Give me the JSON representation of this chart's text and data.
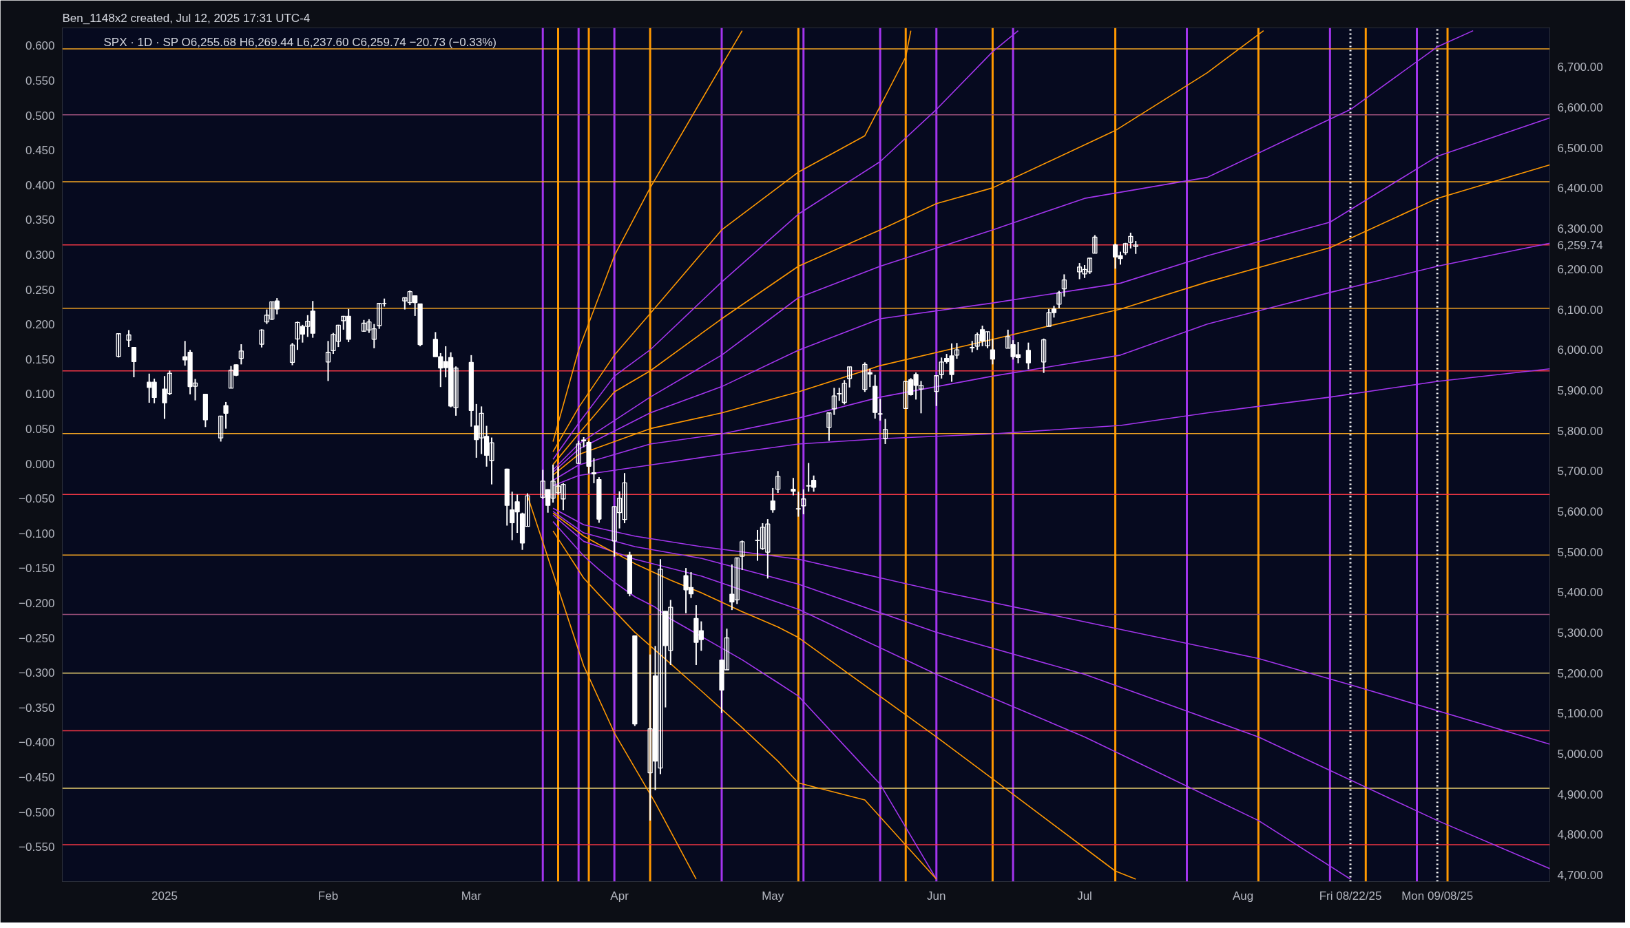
{
  "chart_data": {
    "type": "candlestick",
    "title": "Ben_1148x2 created, Jul 12, 2025 17:31 UTC-4",
    "subtitle": "SPX · 1D · SP  O6,255.68  H6,269.44  L6,237.60  C6,259.74  −20.73 (−0.33%)",
    "color": "#ffffff",
    "grid": false,
    "xlim": [
      "2024-12-13",
      "2025-09-30"
    ],
    "xticks": [
      {
        "value": "2025-01-02",
        "label": "2025"
      },
      {
        "value": "2025-02-03",
        "label": "Feb"
      },
      {
        "value": "2025-03-03",
        "label": "Mar"
      },
      {
        "value": "2025-04-01",
        "label": "Apr"
      },
      {
        "value": "2025-05-01",
        "label": "May"
      },
      {
        "value": "2025-06-02",
        "label": "Jun"
      },
      {
        "value": "2025-07-01",
        "label": "Jul"
      },
      {
        "value": "2025-08-01",
        "label": "Aug"
      }
    ],
    "ylim": [
      4684,
      6797
    ],
    "yticks": [
      {
        "value": 4700,
        "label": "4,700.00"
      },
      {
        "value": 4800,
        "label": "4,800.00"
      },
      {
        "value": 4900,
        "label": "4,900.00"
      },
      {
        "value": 5000,
        "label": "5,000.00"
      },
      {
        "value": 5100,
        "label": "5,100.00"
      },
      {
        "value": 5200,
        "label": "5,200.00"
      },
      {
        "value": 5300,
        "label": "5,300.00"
      },
      {
        "value": 5400,
        "label": "5,400.00"
      },
      {
        "value": 5500,
        "label": "5,500.00"
      },
      {
        "value": 5600,
        "label": "5,600.00"
      },
      {
        "value": 5700,
        "label": "5,700.00"
      },
      {
        "value": 5800,
        "label": "5,800.00"
      },
      {
        "value": 5900,
        "label": "5,900.00"
      },
      {
        "value": 6000,
        "label": "6,000.00"
      },
      {
        "value": 6100,
        "label": "6,100.00"
      },
      {
        "value": 6200,
        "label": "6,200.00"
      },
      {
        "value": 6300,
        "label": "6,300.00"
      },
      {
        "value": 6400,
        "label": "6,400.00"
      },
      {
        "value": 6500,
        "label": "6,500.00"
      },
      {
        "value": 6600,
        "label": "6,600.00"
      },
      {
        "value": 6700,
        "label": "6,700.00"
      }
    ],
    "y2lim": [
      -0.5996,
      0.6255
    ],
    "y2ticks": [
      {
        "value": -0.55,
        "label": "−0.550"
      },
      {
        "value": -0.5,
        "label": "−0.500"
      },
      {
        "value": -0.45,
        "label": "−0.450"
      },
      {
        "value": -0.4,
        "label": "−0.400"
      },
      {
        "value": -0.35,
        "label": "−0.350"
      },
      {
        "value": -0.3,
        "label": "−0.300"
      },
      {
        "value": -0.25,
        "label": "−0.250"
      },
      {
        "value": -0.2,
        "label": "−0.200"
      },
      {
        "value": -0.15,
        "label": "−0.150"
      },
      {
        "value": -0.1,
        "label": "−0.100"
      },
      {
        "value": -0.05,
        "label": "−0.050"
      },
      {
        "value": 0,
        "label": "0.000"
      },
      {
        "value": 0.05,
        "label": "0.050"
      },
      {
        "value": 0.1,
        "label": "0.100"
      },
      {
        "value": 0.15,
        "label": "0.150"
      },
      {
        "value": 0.2,
        "label": "0.200"
      },
      {
        "value": 0.25,
        "label": "0.250"
      },
      {
        "value": 0.3,
        "label": "0.300"
      },
      {
        "value": 0.35,
        "label": "0.350"
      },
      {
        "value": 0.4,
        "label": "0.400"
      },
      {
        "value": 0.45,
        "label": "0.450"
      },
      {
        "value": 0.5,
        "label": "0.500"
      },
      {
        "value": 0.55,
        "label": "0.550"
      },
      {
        "value": 0.6,
        "label": "0.600"
      }
    ],
    "x": [
      "2024-12-24",
      "2024-12-26",
      "2024-12-27",
      "2024-12-30",
      "2024-12-31",
      "2025-01-02",
      "2025-01-03",
      "2025-01-06",
      "2025-01-07",
      "2025-01-08",
      "2025-01-10",
      "2025-01-13",
      "2025-01-14",
      "2025-01-15",
      "2025-01-16",
      "2025-01-17",
      "2025-01-21",
      "2025-01-22",
      "2025-01-23",
      "2025-01-24",
      "2025-01-27",
      "2025-01-28",
      "2025-01-29",
      "2025-01-30",
      "2025-01-31",
      "2025-02-03",
      "2025-02-04",
      "2025-02-05",
      "2025-02-06",
      "2025-02-07",
      "2025-02-10",
      "2025-02-11",
      "2025-02-12",
      "2025-02-13",
      "2025-02-14",
      "2025-02-18",
      "2025-02-19",
      "2025-02-20",
      "2025-02-21",
      "2025-02-24",
      "2025-02-25",
      "2025-02-26",
      "2025-02-27",
      "2025-02-28",
      "2025-03-03",
      "2025-03-04",
      "2025-03-05",
      "2025-03-06",
      "2025-03-07",
      "2025-03-10",
      "2025-03-11",
      "2025-03-12",
      "2025-03-13",
      "2025-03-14",
      "2025-03-17",
      "2025-03-18",
      "2025-03-19",
      "2025-03-20",
      "2025-03-21",
      "2025-03-24",
      "2025-03-25",
      "2025-03-26",
      "2025-03-27",
      "2025-03-28",
      "2025-03-31",
      "2025-04-01",
      "2025-04-02",
      "2025-04-03",
      "2025-04-04",
      "2025-04-07",
      "2025-04-08",
      "2025-04-09",
      "2025-04-10",
      "2025-04-11",
      "2025-04-14",
      "2025-04-15",
      "2025-04-16",
      "2025-04-17",
      "2025-04-21",
      "2025-04-22",
      "2025-04-23",
      "2025-04-24",
      "2025-04-25",
      "2025-04-28",
      "2025-04-29",
      "2025-04-30",
      "2025-05-01",
      "2025-05-02",
      "2025-05-05",
      "2025-05-06",
      "2025-05-07",
      "2025-05-08",
      "2025-05-09",
      "2025-05-12",
      "2025-05-13",
      "2025-05-14",
      "2025-05-15",
      "2025-05-16",
      "2025-05-19",
      "2025-05-20",
      "2025-05-21",
      "2025-05-22",
      "2025-05-23",
      "2025-05-27",
      "2025-05-28",
      "2025-05-29",
      "2025-05-30",
      "2025-06-02",
      "2025-06-03",
      "2025-06-04",
      "2025-06-05",
      "2025-06-06",
      "2025-06-09",
      "2025-06-10",
      "2025-06-11",
      "2025-06-12",
      "2025-06-13",
      "2025-06-16",
      "2025-06-17",
      "2025-06-18",
      "2025-06-20",
      "2025-06-23",
      "2025-06-24",
      "2025-06-25",
      "2025-06-26",
      "2025-06-27",
      "2025-06-30",
      "2025-07-01",
      "2025-07-02",
      "2025-07-03",
      "2025-07-07",
      "2025-07-08",
      "2025-07-09",
      "2025-07-10",
      "2025-07-11"
    ],
    "ohlc": [
      [
        5984,
        6040,
        5981,
        6040
      ],
      [
        6024,
        6049,
        6007,
        6037
      ],
      [
        6006,
        6006,
        5932,
        5971
      ],
      [
        5920,
        5941,
        5869,
        5907
      ],
      [
        5920,
        5929,
        5868,
        5882
      ],
      [
        5903,
        5935,
        5829,
        5869
      ],
      [
        5892,
        5949,
        5888,
        5942
      ],
      [
        5983,
        6022,
        5961,
        5975
      ],
      [
        5994,
        6000,
        5890,
        5909
      ],
      [
        5910,
        5928,
        5875,
        5918
      ],
      [
        5890,
        5890,
        5809,
        5827
      ],
      [
        5782,
        5837,
        5773,
        5836
      ],
      [
        5862,
        5871,
        5805,
        5843
      ],
      [
        5905,
        5960,
        5905,
        5950
      ],
      [
        5963,
        5964,
        5935,
        5937
      ],
      [
        5979,
        6014,
        5964,
        5997
      ],
      [
        6014,
        6051,
        6006,
        6049
      ],
      [
        6069,
        6100,
        6064,
        6086
      ],
      [
        6076,
        6119,
        6074,
        6119
      ],
      [
        6121,
        6128,
        6088,
        6101
      ],
      [
        5969,
        6017,
        5962,
        6012
      ],
      [
        6027,
        6070,
        6000,
        6068
      ],
      [
        6058,
        6062,
        6018,
        6039
      ],
      [
        6058,
        6086,
        6032,
        6071
      ],
      [
        6096,
        6121,
        6030,
        6041
      ],
      [
        5970,
        6022,
        5923,
        5994
      ],
      [
        5998,
        6042,
        5990,
        6038
      ],
      [
        6021,
        6062,
        6007,
        6061
      ],
      [
        6072,
        6084,
        6050,
        6083
      ],
      [
        6083,
        6101,
        6019,
        6026
      ],
      [
        6046,
        6074,
        6045,
        6066
      ],
      [
        6049,
        6076,
        6042,
        6069
      ],
      [
        6026,
        6064,
        6004,
        6052
      ],
      [
        6060,
        6116,
        6052,
        6115
      ],
      [
        6115,
        6127,
        6107,
        6115
      ],
      [
        6121,
        6129,
        6100,
        6129
      ],
      [
        6117,
        6147,
        6111,
        6144
      ],
      [
        6134,
        6134,
        6084,
        6117
      ],
      [
        6114,
        6114,
        6009,
        6013
      ],
      [
        6026,
        6044,
        5983,
        5983
      ],
      [
        5983,
        5992,
        5908,
        5955
      ],
      [
        5971,
        6009,
        5932,
        5956
      ],
      [
        5981,
        5994,
        5858,
        5861
      ],
      [
        5857,
        5959,
        5837,
        5955
      ],
      [
        5969,
        5987,
        5810,
        5850
      ],
      [
        5812,
        5866,
        5733,
        5778
      ],
      [
        5782,
        5860,
        5742,
        5843
      ],
      [
        5786,
        5812,
        5711,
        5739
      ],
      [
        5726,
        5783,
        5667,
        5770
      ],
      [
        5705,
        5706,
        5565,
        5615
      ],
      [
        5604,
        5649,
        5529,
        5572
      ],
      [
        5624,
        5642,
        5547,
        5599
      ],
      [
        5594,
        5597,
        5505,
        5522
      ],
      [
        5563,
        5645,
        5563,
        5639
      ],
      [
        5635,
        5703,
        5631,
        5675
      ],
      [
        5654,
        5655,
        5597,
        5615
      ],
      [
        5633,
        5716,
        5622,
        5675
      ],
      [
        5646,
        5711,
        5641,
        5663
      ],
      [
        5631,
        5670,
        5603,
        5667
      ],
      [
        5719,
        5775,
        5719,
        5767
      ],
      [
        5775,
        5784,
        5759,
        5777
      ],
      [
        5771,
        5775,
        5694,
        5712
      ],
      [
        5696,
        5732,
        5670,
        5693
      ],
      [
        5679,
        5685,
        5572,
        5581
      ],
      [
        5527,
        5613,
        5488,
        5612
      ],
      [
        5597,
        5650,
        5558,
        5633
      ],
      [
        5580,
        5695,
        5571,
        5671
      ],
      [
        5492,
        5500,
        5390,
        5397
      ],
      [
        5292,
        5292,
        5069,
        5074
      ],
      [
        4953,
        5246,
        4835,
        5062
      ],
      [
        5193,
        5267,
        4910,
        4982
      ],
      [
        4965,
        5482,
        4950,
        5457
      ],
      [
        5353,
        5353,
        5115,
        5268
      ],
      [
        5256,
        5381,
        5220,
        5363
      ],
      [
        5441,
        5460,
        5348,
        5406
      ],
      [
        5412,
        5450,
        5386,
        5396
      ],
      [
        5335,
        5368,
        5220,
        5276
      ],
      [
        5305,
        5328,
        5255,
        5283
      ],
      [
        5232,
        5233,
        5101,
        5158
      ],
      [
        5208,
        5310,
        5208,
        5287
      ],
      [
        5395,
        5469,
        5356,
        5376
      ],
      [
        5381,
        5486,
        5371,
        5485
      ],
      [
        5489,
        5528,
        5455,
        5525
      ],
      [
        5529,
        5554,
        5478,
        5528
      ],
      [
        5508,
        5571,
        5505,
        5561
      ],
      [
        5499,
        5581,
        5434,
        5569
      ],
      [
        5626,
        5658,
        5597,
        5604
      ],
      [
        5655,
        5700,
        5646,
        5687
      ],
      [
        5655,
        5683,
        5640,
        5650
      ],
      [
        5606,
        5649,
        5587,
        5607
      ],
      [
        5614,
        5655,
        5593,
        5631
      ],
      [
        5663,
        5720,
        5649,
        5664
      ],
      [
        5677,
        5689,
        5649,
        5660
      ],
      [
        5808,
        5844,
        5775,
        5844
      ],
      [
        5854,
        5906,
        5839,
        5886
      ],
      [
        5891,
        5906,
        5874,
        5892
      ],
      [
        5870,
        5925,
        5865,
        5917
      ],
      [
        5929,
        5958,
        5907,
        5958
      ],
      [
        5902,
        5969,
        5896,
        5964
      ],
      [
        5944,
        5953,
        5908,
        5940
      ],
      [
        5910,
        5938,
        5830,
        5845
      ],
      [
        5841,
        5878,
        5825,
        5842
      ],
      [
        5781,
        5829,
        5767,
        5803
      ],
      [
        5855,
        5922,
        5854,
        5922
      ],
      [
        5926,
        5930,
        5887,
        5889
      ],
      [
        5939,
        5944,
        5877,
        5912
      ],
      [
        5903,
        5923,
        5843,
        5912
      ],
      [
        5897,
        5937,
        5861,
        5936
      ],
      [
        5939,
        5981,
        5929,
        5970
      ],
      [
        5979,
        5990,
        5966,
        5971
      ],
      [
        5985,
        6016,
        5921,
        5939
      ],
      [
        5987,
        6017,
        5978,
        6000
      ],
      [
        6005,
        6022,
        5994,
        6006
      ],
      [
        6009,
        6043,
        6000,
        6038
      ],
      [
        6050,
        6060,
        6009,
        6022
      ],
      [
        6010,
        6045,
        6004,
        6045
      ],
      [
        6000,
        6027,
        5964,
        5977
      ],
      [
        6004,
        6050,
        6004,
        6033
      ],
      [
        6013,
        6024,
        5976,
        5983
      ],
      [
        5988,
        6019,
        5967,
        5981
      ],
      [
        5999,
        6018,
        5952,
        5968
      ],
      [
        5970,
        6028,
        5943,
        6025
      ],
      [
        6058,
        6101,
        6058,
        6092
      ],
      [
        6101,
        6109,
        6080,
        6092
      ],
      [
        6113,
        6146,
        6103,
        6141
      ],
      [
        6151,
        6187,
        6132,
        6173
      ],
      [
        6193,
        6215,
        6175,
        6205
      ],
      [
        6188,
        6210,
        6178,
        6199
      ],
      [
        6193,
        6227,
        6188,
        6227
      ],
      [
        6239,
        6284,
        6239,
        6279
      ],
      [
        6260,
        6263,
        6201,
        6230
      ],
      [
        6233,
        6243,
        6211,
        6226
      ],
      [
        6241,
        6265,
        6235,
        6263
      ],
      [
        6266,
        6290,
        6251,
        6281
      ],
      [
        6255.68,
        6269.44,
        6237.6,
        6259.74
      ]
    ],
    "series": [
      {
        "type": "line",
        "color": "#ff9800",
        "x": [
          "2025-03-19",
          "2025-03-20",
          "2025-03-24",
          "2025-03-31",
          "2025-04-07",
          "2025-04-21",
          "2025-04-25"
        ],
        "values": [
          5773,
          5818,
          5999,
          6233,
          6401,
          6704,
          6790
        ]
      },
      {
        "type": "line",
        "color": "#ff9800",
        "x": [
          "2025-03-19",
          "2025-03-24",
          "2025-03-31",
          "2025-04-07",
          "2025-04-21",
          "2025-05-06",
          "2025-05-19",
          "2025-05-27",
          "2025-05-28"
        ],
        "values": [
          5748,
          5857,
          5987,
          6090,
          6297,
          6440,
          6530,
          6725,
          6790
        ]
      },
      {
        "type": "line",
        "color": "#a335ee",
        "x": [
          "2025-03-19",
          "2025-03-24",
          "2025-03-31",
          "2025-04-07",
          "2025-04-21",
          "2025-05-06",
          "2025-05-22",
          "2025-06-02",
          "2025-06-13",
          "2025-06-18"
        ],
        "values": [
          5729,
          5818,
          5935,
          6000,
          6168,
          6336,
          6466,
          6595,
          6738,
          6790
        ]
      },
      {
        "type": "line",
        "color": "#ff9800",
        "x": [
          "2025-03-19",
          "2025-03-24",
          "2025-03-31",
          "2025-04-07",
          "2025-04-21",
          "2025-05-06",
          "2025-05-22",
          "2025-06-02",
          "2025-06-13",
          "2025-07-07",
          "2025-07-25",
          "2025-08-05"
        ],
        "values": [
          5716,
          5792,
          5896,
          5948,
          6077,
          6207,
          6297,
          6362,
          6401,
          6543,
          6686,
          6790
        ]
      },
      {
        "type": "line",
        "color": "#a335ee",
        "x": [
          "2025-03-19",
          "2025-03-24",
          "2025-04-07",
          "2025-04-21",
          "2025-05-06",
          "2025-05-22",
          "2025-06-13",
          "2025-07-01",
          "2025-07-25",
          "2025-08-22",
          "2025-09-08",
          "2025-09-15"
        ],
        "values": [
          5703,
          5767,
          5883,
          5987,
          6129,
          6207,
          6297,
          6375,
          6427,
          6595,
          6750,
          6790
        ]
      },
      {
        "type": "line",
        "color": "#a335ee",
        "x": [
          "2025-03-19",
          "2025-03-24",
          "2025-04-07",
          "2025-04-21",
          "2025-05-06",
          "2025-05-22",
          "2025-06-13",
          "2025-07-08",
          "2025-07-25",
          "2025-08-18",
          "2025-09-08",
          "2025-09-30"
        ],
        "values": [
          5697,
          5754,
          5844,
          5909,
          5999,
          6077,
          6116,
          6165,
          6233,
          6316,
          6479,
          6574
        ]
      },
      {
        "type": "line",
        "color": "#ff9800",
        "x": [
          "2025-03-19",
          "2025-03-24",
          "2025-04-07",
          "2025-04-21",
          "2025-05-06",
          "2025-05-22",
          "2025-06-13",
          "2025-07-08",
          "2025-07-25",
          "2025-08-18",
          "2025-09-08",
          "2025-09-30"
        ],
        "values": [
          5690,
          5741,
          5805,
          5844,
          5896,
          5961,
          6026,
          6101,
          6168,
          6253,
          6375,
          6458
        ]
      },
      {
        "type": "line",
        "color": "#a335ee",
        "x": [
          "2025-03-19",
          "2025-03-24",
          "2025-04-07",
          "2025-04-21",
          "2025-05-06",
          "2025-05-22",
          "2025-06-13",
          "2025-07-08",
          "2025-07-25",
          "2025-08-18",
          "2025-09-08",
          "2025-09-30"
        ],
        "values": [
          5677,
          5715,
          5767,
          5792,
          5831,
          5883,
          5935,
          5987,
          6064,
          6142,
          6207,
          6264
        ]
      },
      {
        "type": "line",
        "color": "#a335ee",
        "x": [
          "2025-03-19",
          "2025-03-24",
          "2025-04-07",
          "2025-04-21",
          "2025-05-06",
          "2025-05-22",
          "2025-06-13",
          "2025-07-08",
          "2025-07-25",
          "2025-08-18",
          "2025-09-08",
          "2025-09-30"
        ],
        "values": [
          5664,
          5689,
          5715,
          5741,
          5767,
          5780,
          5792,
          5813,
          5844,
          5883,
          5922,
          5953
        ]
      },
      {
        "type": "line",
        "color": "#a335ee",
        "x": [
          "2025-03-19",
          "2025-03-25",
          "2025-04-04",
          "2025-04-17",
          "2025-05-06",
          "2025-06-02",
          "2025-07-01",
          "2025-08-04",
          "2025-08-22",
          "2025-09-30"
        ],
        "values": [
          5608,
          5567,
          5539,
          5513,
          5482,
          5404,
          5327,
          5236,
          5171,
          5024
        ]
      },
      {
        "type": "line",
        "color": "#a335ee",
        "x": [
          "2025-03-19",
          "2025-03-25",
          "2025-04-04",
          "2025-04-17",
          "2025-05-06",
          "2025-06-02",
          "2025-07-01",
          "2025-08-04",
          "2025-09-08",
          "2025-09-30"
        ],
        "values": [
          5600,
          5547,
          5513,
          5484,
          5420,
          5301,
          5197,
          5042,
          4835,
          4716
        ]
      },
      {
        "type": "line",
        "color": "#a335ee",
        "x": [
          "2025-03-19",
          "2025-03-25",
          "2025-04-04",
          "2025-04-17",
          "2025-05-06",
          "2025-06-02",
          "2025-07-01",
          "2025-08-04",
          "2025-08-22"
        ],
        "values": [
          5591,
          5526,
          5482,
          5440,
          5358,
          5197,
          5042,
          4835,
          4690
        ]
      },
      {
        "type": "line",
        "color": "#a335ee",
        "x": [
          "2025-03-19",
          "2025-03-25",
          "2025-03-28",
          "2025-03-31",
          "2025-04-04",
          "2025-04-08",
          "2025-04-11",
          "2025-04-25",
          "2025-05-02",
          "2025-05-06",
          "2025-05-22",
          "2025-06-02"
        ],
        "values": [
          5575,
          5490,
          5456,
          5425,
          5389,
          5363,
          5334,
          5233,
          5176,
          5143,
          4925,
          4690
        ]
      },
      {
        "type": "line",
        "color": "#ff9800",
        "x": [
          "2025-03-19",
          "2025-03-25",
          "2025-03-28",
          "2025-04-04",
          "2025-04-11",
          "2025-04-17",
          "2025-04-25",
          "2025-05-02",
          "2025-05-06",
          "2025-06-02",
          "2025-06-13",
          "2025-07-07",
          "2025-07-11"
        ],
        "values": [
          5596,
          5539,
          5518,
          5471,
          5430,
          5399,
          5352,
          5314,
          5288,
          5042,
          4938,
          4710,
          4690
        ]
      },
      {
        "type": "line",
        "color": "#ff9800",
        "x": [
          "2025-03-19",
          "2025-03-25",
          "2025-03-28",
          "2025-04-04",
          "2025-04-11",
          "2025-04-17",
          "2025-04-25",
          "2025-05-02",
          "2025-05-06",
          "2025-05-19",
          "2025-06-02"
        ],
        "values": [
          5552,
          5435,
          5394,
          5301,
          5223,
          5156,
          5065,
          4982,
          4928,
          4886,
          4690
        ]
      },
      {
        "type": "line",
        "color": "#ff9800",
        "x": [
          "2025-03-14",
          "2025-03-25",
          "2025-03-31",
          "2025-04-08",
          "2025-04-16"
        ],
        "values": [
          5639,
          5218,
          5052,
          4879,
          4690
        ]
      }
    ],
    "ref_lines": [
      {
        "axis": "x",
        "value": "2025-03-17",
        "color": "#a335ee"
      },
      {
        "axis": "x",
        "value": "2025-03-20",
        "color": "#ff9800"
      },
      {
        "axis": "x",
        "value": "2025-03-24",
        "color": "#a335ee"
      },
      {
        "axis": "x",
        "value": "2025-03-26",
        "color": "#ff9800"
      },
      {
        "axis": "x",
        "value": "2025-03-31",
        "color": "#a335ee"
      },
      {
        "axis": "x",
        "value": "2025-04-07",
        "color": "#ff9800"
      },
      {
        "axis": "x",
        "value": "2025-04-21",
        "color": "#a335ee"
      },
      {
        "axis": "x",
        "value": "2025-05-06",
        "color": "#ff9800"
      },
      {
        "axis": "x",
        "value": "2025-05-07",
        "color": "#a335ee"
      },
      {
        "axis": "x",
        "value": "2025-05-22",
        "color": "#a335ee"
      },
      {
        "axis": "x",
        "value": "2025-05-27",
        "color": "#ff9800"
      },
      {
        "axis": "x",
        "value": "2025-06-02",
        "color": "#a335ee"
      },
      {
        "axis": "x",
        "value": "2025-06-13",
        "color": "#ff9800"
      },
      {
        "axis": "x",
        "value": "2025-06-17",
        "color": "#a335ee"
      },
      {
        "axis": "x",
        "value": "2025-07-07",
        "color": "#ff9800"
      },
      {
        "axis": "x",
        "value": "2025-07-21",
        "color": "#a335ee"
      },
      {
        "axis": "x",
        "value": "2025-08-04",
        "color": "#ff9800"
      },
      {
        "axis": "x",
        "value": "2025-08-18",
        "color": "#a335ee"
      },
      {
        "axis": "x",
        "value": "2025-08-22",
        "color": "#ffffff",
        "line_style": "dotted",
        "label": "Fri 08/22/25"
      },
      {
        "axis": "x",
        "value": "2025-08-25",
        "color": "#ff9800"
      },
      {
        "axis": "x",
        "value": "2025-09-04",
        "color": "#a335ee"
      },
      {
        "axis": "x",
        "value": "2025-09-08",
        "color": "#ffffff",
        "line_style": "dotted",
        "label": "Mon 09/08/25"
      },
      {
        "axis": "x",
        "value": "2025-09-10",
        "color": "#ff9800"
      },
      {
        "axis": "y",
        "value": 6745,
        "color": "#f5a623"
      },
      {
        "axis": "y",
        "value": 6582,
        "color": "#9b4f7a"
      },
      {
        "axis": "y",
        "value": 6416,
        "color": "#f5a623"
      },
      {
        "axis": "y",
        "value": 6259.74,
        "color": "#f23645",
        "label": "6,259.74"
      },
      {
        "axis": "y",
        "value": 6103,
        "color": "#f5a623"
      },
      {
        "axis": "y",
        "value": 5948,
        "color": "#f23645"
      },
      {
        "axis": "y",
        "value": 5793,
        "color": "#f5a623"
      },
      {
        "axis": "y",
        "value": 5642,
        "color": "#f23645"
      },
      {
        "axis": "y",
        "value": 5492,
        "color": "#f5a623"
      },
      {
        "axis": "y",
        "value": 5345,
        "color": "#9b4f7a"
      },
      {
        "axis": "y",
        "value": 5200,
        "color": "#e8d070"
      },
      {
        "axis": "y",
        "value": 5057,
        "color": "#f23645"
      },
      {
        "axis": "y",
        "value": 4915,
        "color": "#e8d070"
      },
      {
        "axis": "y",
        "value": 4775,
        "color": "#f23645"
      }
    ]
  }
}
